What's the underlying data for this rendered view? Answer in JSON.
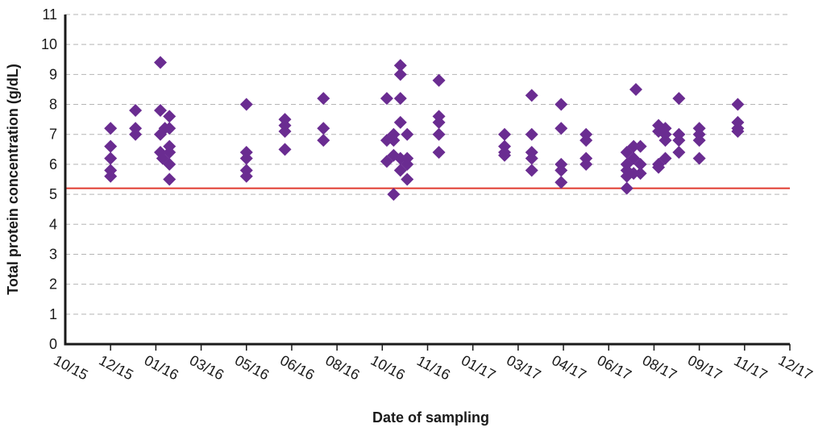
{
  "chart_data": {
    "type": "scatter",
    "title": "",
    "xlabel": "Date of sampling",
    "ylabel": "Total protein concentration (g/dL)",
    "ylim": [
      0,
      11
    ],
    "yticks": [
      "0",
      "1",
      "2",
      "3",
      "4",
      "5",
      "6",
      "7",
      "8",
      "9",
      "10",
      "11"
    ],
    "xticks": [
      "10/15",
      "12/15",
      "01/16",
      "03/16",
      "05/16",
      "06/16",
      "08/16",
      "10/16",
      "11/16",
      "01/17",
      "03/17",
      "04/17",
      "06/17",
      "08/17",
      "09/17",
      "11/17",
      "12/17"
    ],
    "grid": true,
    "marker_color": "#6a2c91",
    "reference_line": {
      "y": 5.2,
      "color": "#e03a2e"
    },
    "series": [
      {
        "points": [
          {
            "x": 1.0,
            "y": 7.2
          },
          {
            "x": 1.0,
            "y": 6.6
          },
          {
            "x": 1.0,
            "y": 6.2
          },
          {
            "x": 1.0,
            "y": 5.8
          },
          {
            "x": 1.0,
            "y": 5.6
          },
          {
            "x": 1.55,
            "y": 7.8
          },
          {
            "x": 1.55,
            "y": 7.2
          },
          {
            "x": 1.55,
            "y": 7.0
          },
          {
            "x": 2.1,
            "y": 9.4
          },
          {
            "x": 2.1,
            "y": 7.8
          },
          {
            "x": 2.1,
            "y": 7.0
          },
          {
            "x": 2.1,
            "y": 6.4
          },
          {
            "x": 2.15,
            "y": 6.2
          },
          {
            "x": 2.2,
            "y": 7.2
          },
          {
            "x": 2.3,
            "y": 7.6
          },
          {
            "x": 2.3,
            "y": 7.2
          },
          {
            "x": 2.3,
            "y": 6.6
          },
          {
            "x": 2.3,
            "y": 6.4
          },
          {
            "x": 2.3,
            "y": 6.0
          },
          {
            "x": 2.3,
            "y": 5.5
          },
          {
            "x": 4.0,
            "y": 8.0
          },
          {
            "x": 4.0,
            "y": 6.4
          },
          {
            "x": 4.0,
            "y": 6.2
          },
          {
            "x": 4.0,
            "y": 5.8
          },
          {
            "x": 4.0,
            "y": 5.6
          },
          {
            "x": 4.85,
            "y": 7.5
          },
          {
            "x": 4.85,
            "y": 7.3
          },
          {
            "x": 4.85,
            "y": 7.1
          },
          {
            "x": 4.85,
            "y": 6.5
          },
          {
            "x": 5.7,
            "y": 8.2
          },
          {
            "x": 5.7,
            "y": 7.2
          },
          {
            "x": 5.7,
            "y": 6.8
          },
          {
            "x": 7.1,
            "y": 8.2
          },
          {
            "x": 7.1,
            "y": 6.8
          },
          {
            "x": 7.1,
            "y": 6.1
          },
          {
            "x": 7.25,
            "y": 7.0
          },
          {
            "x": 7.25,
            "y": 6.8
          },
          {
            "x": 7.25,
            "y": 6.3
          },
          {
            "x": 7.25,
            "y": 5.0
          },
          {
            "x": 7.4,
            "y": 9.3
          },
          {
            "x": 7.4,
            "y": 9.0
          },
          {
            "x": 7.4,
            "y": 8.2
          },
          {
            "x": 7.4,
            "y": 7.4
          },
          {
            "x": 7.4,
            "y": 6.2
          },
          {
            "x": 7.4,
            "y": 5.8
          },
          {
            "x": 7.55,
            "y": 7.0
          },
          {
            "x": 7.55,
            "y": 6.2
          },
          {
            "x": 7.55,
            "y": 6.0
          },
          {
            "x": 7.55,
            "y": 5.5
          },
          {
            "x": 8.25,
            "y": 8.8
          },
          {
            "x": 8.25,
            "y": 7.6
          },
          {
            "x": 8.25,
            "y": 7.4
          },
          {
            "x": 8.25,
            "y": 7.0
          },
          {
            "x": 8.25,
            "y": 6.4
          },
          {
            "x": 9.7,
            "y": 7.0
          },
          {
            "x": 9.7,
            "y": 6.6
          },
          {
            "x": 9.7,
            "y": 6.4
          },
          {
            "x": 9.7,
            "y": 6.3
          },
          {
            "x": 10.3,
            "y": 8.3
          },
          {
            "x": 10.3,
            "y": 7.0
          },
          {
            "x": 10.3,
            "y": 6.4
          },
          {
            "x": 10.3,
            "y": 6.2
          },
          {
            "x": 10.3,
            "y": 5.8
          },
          {
            "x": 10.95,
            "y": 8.0
          },
          {
            "x": 10.95,
            "y": 7.2
          },
          {
            "x": 10.95,
            "y": 6.0
          },
          {
            "x": 10.95,
            "y": 5.8
          },
          {
            "x": 10.95,
            "y": 5.4
          },
          {
            "x": 11.5,
            "y": 7.0
          },
          {
            "x": 11.5,
            "y": 6.8
          },
          {
            "x": 11.5,
            "y": 6.2
          },
          {
            "x": 11.5,
            "y": 6.0
          },
          {
            "x": 12.4,
            "y": 6.4
          },
          {
            "x": 12.4,
            "y": 6.0
          },
          {
            "x": 12.4,
            "y": 5.8
          },
          {
            "x": 12.4,
            "y": 5.6
          },
          {
            "x": 12.4,
            "y": 5.2
          },
          {
            "x": 12.55,
            "y": 6.6
          },
          {
            "x": 12.55,
            "y": 6.2
          },
          {
            "x": 12.55,
            "y": 5.7
          },
          {
            "x": 12.6,
            "y": 8.5
          },
          {
            "x": 12.7,
            "y": 6.6
          },
          {
            "x": 12.7,
            "y": 6.0
          },
          {
            "x": 12.7,
            "y": 5.7
          },
          {
            "x": 13.1,
            "y": 7.3
          },
          {
            "x": 13.1,
            "y": 7.1
          },
          {
            "x": 13.1,
            "y": 6.0
          },
          {
            "x": 13.1,
            "y": 5.9
          },
          {
            "x": 13.25,
            "y": 7.2
          },
          {
            "x": 13.25,
            "y": 7.0
          },
          {
            "x": 13.25,
            "y": 6.8
          },
          {
            "x": 13.25,
            "y": 6.2
          },
          {
            "x": 13.55,
            "y": 8.2
          },
          {
            "x": 13.55,
            "y": 7.0
          },
          {
            "x": 13.55,
            "y": 6.8
          },
          {
            "x": 13.55,
            "y": 6.4
          },
          {
            "x": 14.0,
            "y": 7.2
          },
          {
            "x": 14.0,
            "y": 7.0
          },
          {
            "x": 14.0,
            "y": 6.8
          },
          {
            "x": 14.0,
            "y": 6.2
          },
          {
            "x": 14.85,
            "y": 8.0
          },
          {
            "x": 14.85,
            "y": 7.4
          },
          {
            "x": 14.85,
            "y": 7.2
          },
          {
            "x": 14.85,
            "y": 7.1
          }
        ]
      }
    ]
  }
}
